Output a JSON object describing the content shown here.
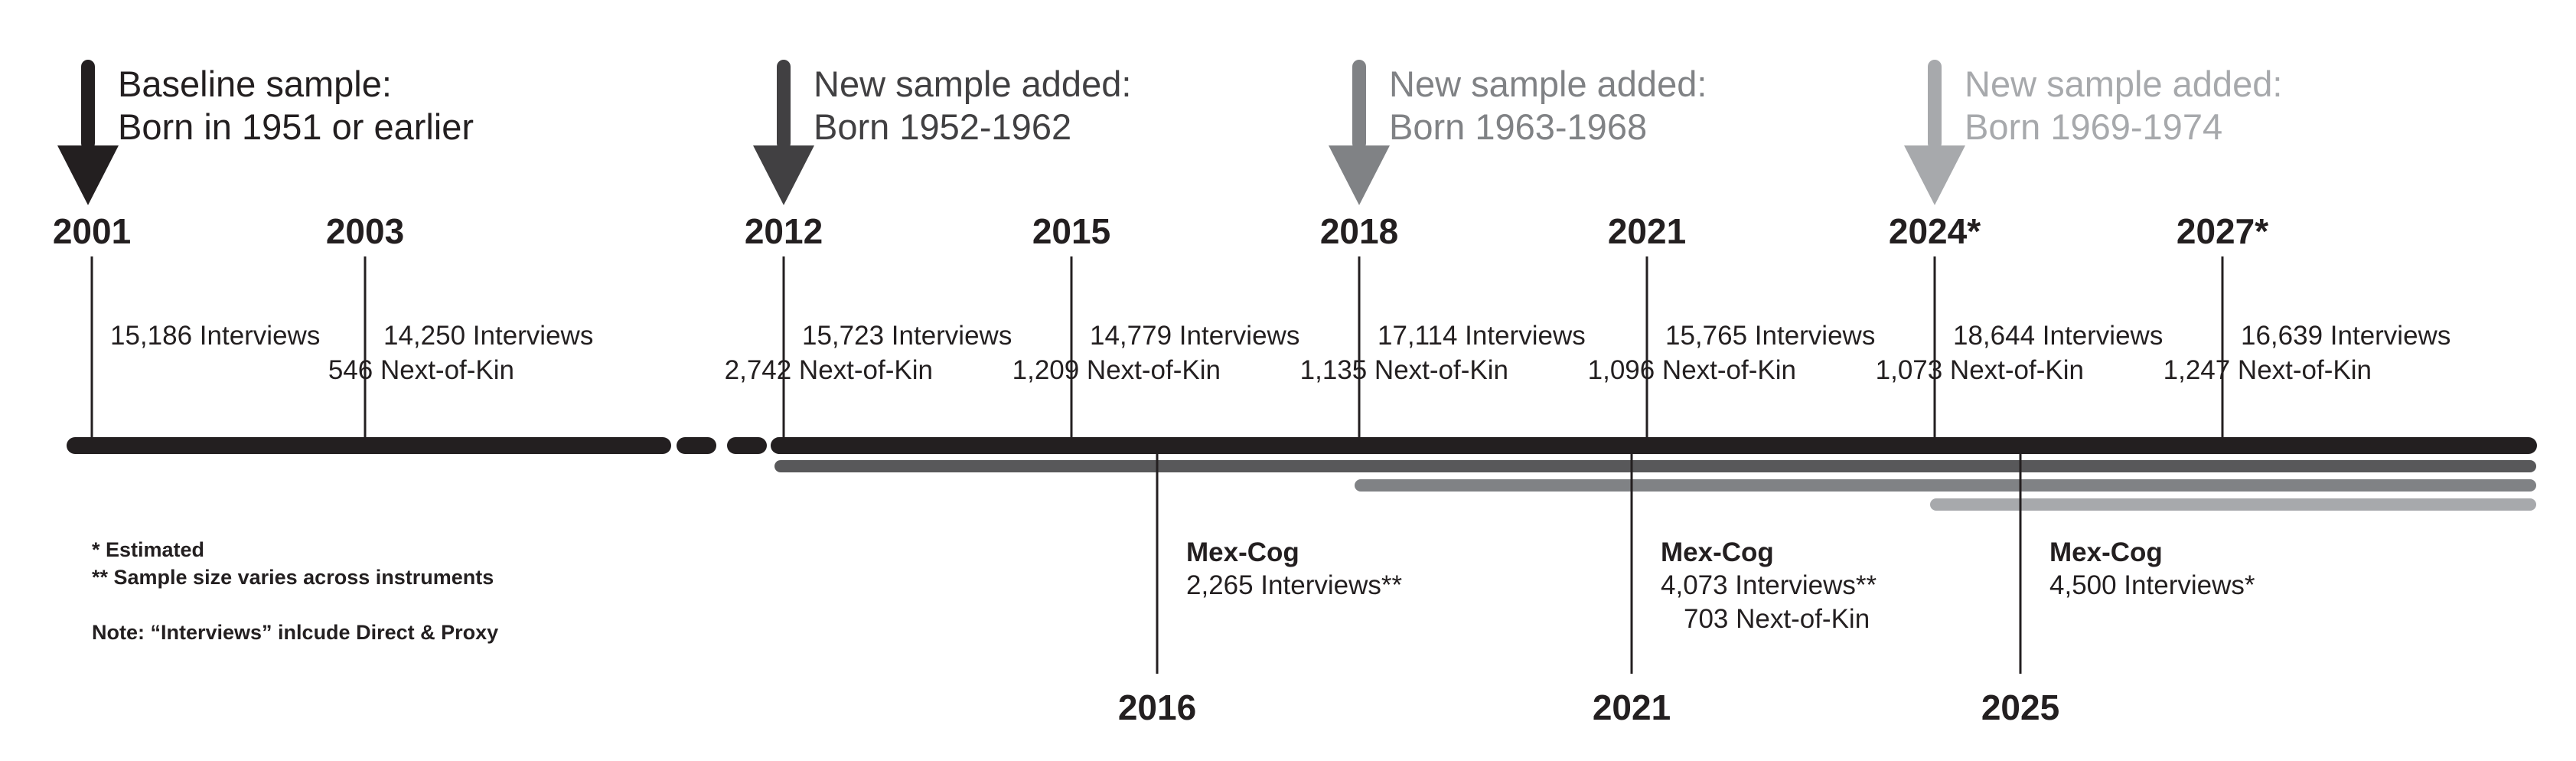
{
  "colors": {
    "ink": "#231f20",
    "wave2_gray": "#58585a",
    "wave3_gray": "#808285",
    "wave4_gray": "#a7a9ac"
  },
  "cohorts": [
    {
      "line1": "Baseline sample:",
      "line2": "Born in 1951 or earlier",
      "color": "#231f20",
      "text_color": "#231f20",
      "icon": "down-arrow-icon"
    },
    {
      "line1": "New sample added:",
      "line2": "Born 1952-1962",
      "color": "#414042",
      "text_color": "#414042",
      "icon": "down-arrow-icon"
    },
    {
      "line1": "New sample added:",
      "line2": "Born 1963-1968",
      "color": "#808285",
      "text_color": "#808285",
      "icon": "down-arrow-icon"
    },
    {
      "line1": "New sample added:",
      "line2": "Born 1969-1974",
      "color": "#a7a9ac",
      "text_color": "#a7a9ac",
      "icon": "down-arrow-icon"
    }
  ],
  "waves": [
    {
      "year": "2001",
      "line1": "15,186 Interviews",
      "line2": ""
    },
    {
      "year": "2003",
      "line1": "14,250 Interviews",
      "line2": "546 Next-of-Kin"
    },
    {
      "year": "2012",
      "line1": "15,723 Interviews",
      "line2": "2,742 Next-of-Kin"
    },
    {
      "year": "2015",
      "line1": "14,779 Interviews",
      "line2": "1,209 Next-of-Kin"
    },
    {
      "year": "2018",
      "line1": "17,114 Interviews",
      "line2": "1,135 Next-of-Kin"
    },
    {
      "year": "2021",
      "line1": "15,765 Interviews",
      "line2": "1,096 Next-of-Kin"
    },
    {
      "year": "2024*",
      "line1": "18,644 Interviews",
      "line2": "1,073 Next-of-Kin"
    },
    {
      "year": "2027*",
      "line1": "16,639 Interviews",
      "line2": "1,247 Next-of-Kin"
    }
  ],
  "mexcog": [
    {
      "year": "2016",
      "title": "Mex-Cog",
      "line1": "2,265 Interviews**",
      "line2": ""
    },
    {
      "year": "2021",
      "title": "Mex-Cog",
      "line1": "4,073 Interviews**",
      "line2": "703 Next-of-Kin"
    },
    {
      "year": "2025",
      "title": "Mex-Cog",
      "line1": "4,500 Interviews*",
      "line2": ""
    }
  ],
  "notes": {
    "estimated": "* Estimated",
    "sample_size": "** Sample size varies across instruments",
    "interviews": "Note: “Interviews” inlcude Direct & Proxy"
  }
}
